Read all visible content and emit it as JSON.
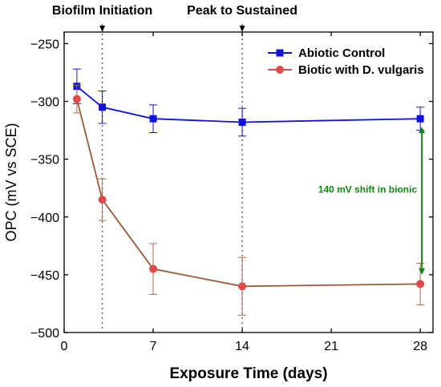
{
  "chart_data": {
    "type": "line",
    "xlabel": "Exposure Time (days)",
    "ylabel": "OPC (mV vs SCE)",
    "xlim": [
      0,
      29
    ],
    "ylim": [
      -500,
      -240
    ],
    "xticks": [
      0,
      7,
      14,
      21,
      28
    ],
    "yticks": [
      -250,
      -300,
      -350,
      -400,
      -450,
      -500
    ],
    "xtick_labels": [
      "0",
      "7",
      "14",
      "21",
      "28"
    ],
    "ytick_labels": [
      "−250",
      "−300",
      "−350",
      "−400",
      "−450",
      "−500"
    ],
    "x": [
      1,
      3,
      7,
      14,
      28
    ],
    "series": [
      {
        "name": "Abiotic Control",
        "color": "#1111dd",
        "marker": "square",
        "values": [
          -287,
          -305,
          -315,
          -318,
          -315
        ],
        "errors": [
          15,
          14,
          12,
          12,
          10
        ]
      },
      {
        "name": "Biotic with D. vulgaris",
        "color": "#e04a4a",
        "line_color": "#9a5a3a",
        "marker": "circle",
        "values": [
          -298,
          -385,
          -445,
          -460,
          -458
        ],
        "errors": [
          12,
          18,
          22,
          25,
          18
        ]
      }
    ],
    "legend_position": "top-right",
    "annotations": {
      "vlines": [
        {
          "x": 3,
          "label": "Biofilm Initiation"
        },
        {
          "x": 14,
          "label": "Peak to Sustained"
        }
      ],
      "shift": {
        "x": 28,
        "from": -322,
        "to": -450,
        "label": "140 mV shift in bionic",
        "color": "#118811"
      }
    }
  }
}
